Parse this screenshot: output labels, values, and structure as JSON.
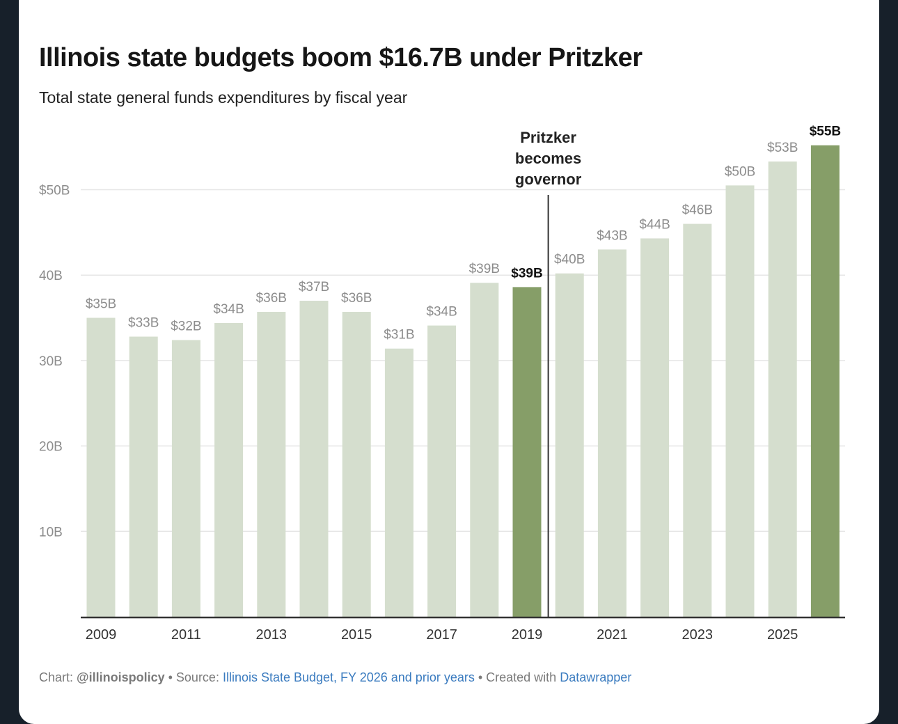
{
  "title": "Illinois state budgets boom $16.7B under Pritzker",
  "subtitle": "Total state general funds expenditures by fiscal year",
  "chart_data": {
    "type": "bar",
    "title": "Illinois state budgets boom $16.7B under Pritzker",
    "subtitle": "Total state general funds expenditures by fiscal year",
    "categories": [
      "2009",
      "2010",
      "2011",
      "2012",
      "2013",
      "2014",
      "2015",
      "2016",
      "2017",
      "2018",
      "2019",
      "2020",
      "2021",
      "2022",
      "2023",
      "2024",
      "2025",
      "2026"
    ],
    "values": [
      35.0,
      32.8,
      32.4,
      34.4,
      35.7,
      37.0,
      35.7,
      31.4,
      34.1,
      39.1,
      38.6,
      40.2,
      43.0,
      44.3,
      46.0,
      50.5,
      53.3,
      55.2
    ],
    "value_labels": [
      "$35B",
      "$33B",
      "$32B",
      "$34B",
      "$36B",
      "$37B",
      "$36B",
      "$31B",
      "$34B",
      "$39B",
      "$39B",
      "$40B",
      "$43B",
      "$44B",
      "$46B",
      "$50B",
      "$53B",
      "$55B"
    ],
    "highlighted": [
      "2019",
      "2026"
    ],
    "x_tick_labels": [
      "2009",
      "2011",
      "2013",
      "2015",
      "2017",
      "2019",
      "2021",
      "2023",
      "2025"
    ],
    "y_ticks": [
      {
        "value": 10,
        "label": "10B"
      },
      {
        "value": 20,
        "label": "20B"
      },
      {
        "value": 30,
        "label": "30B"
      },
      {
        "value": 40,
        "label": "40B"
      },
      {
        "value": 50,
        "label": "$50B"
      }
    ],
    "ylim": [
      0,
      55
    ],
    "xlabel": "",
    "ylabel": "",
    "grid": true,
    "annotation": {
      "text_lines": [
        "Pritzker",
        "becomes",
        "governor"
      ],
      "between": [
        "2019",
        "2020"
      ]
    },
    "colors": {
      "bar": "#d5dece",
      "highlight": "#869e68",
      "grid": "#e6e6e6",
      "axis": "#333333",
      "label": "#8c8c8c",
      "label_highlight": "#111111"
    }
  },
  "footer": {
    "chart_prefix": "Chart: ",
    "chart_author": "@illinoispolicy",
    "sep1": " • Source: ",
    "source": "Illinois State Budget, FY 2026 and prior years",
    "sep2": " • Created with ",
    "tool": "Datawrapper"
  }
}
